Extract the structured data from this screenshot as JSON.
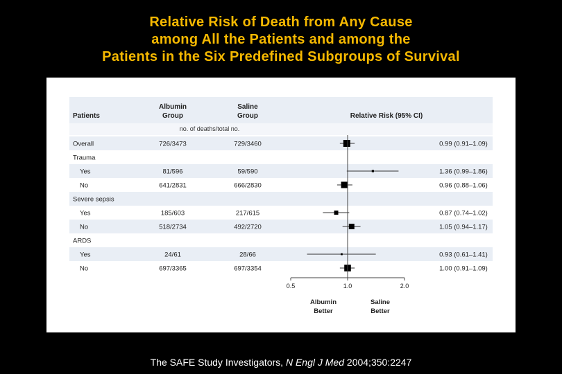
{
  "title_lines": [
    "Relative Risk of Death from Any Cause",
    "among All the Patients and among the",
    "Patients in the Six Predefined Subgroups of Survival"
  ],
  "citation": {
    "authors": "The SAFE Study Investigators, ",
    "journal": "N Engl J Med",
    "details": " 2004;350:2247"
  },
  "colors": {
    "title": "#f5b800",
    "band": "#e9eef5",
    "marker": "#000000"
  },
  "chart_data": {
    "type": "forest",
    "headers": {
      "patients": "Patients",
      "albumin": [
        "Albumin",
        "Group"
      ],
      "saline": [
        "Saline",
        "Group"
      ],
      "risk": "Relative Risk (95% CI)"
    },
    "subheader": "no. of deaths/total no.",
    "xaxis": {
      "scale": "log",
      "ticks": [
        0.5,
        1.0,
        2.0
      ],
      "tick_labels": [
        "0.5",
        "1.0",
        "2.0"
      ],
      "range": [
        0.5,
        2.0
      ]
    },
    "direction_labels": {
      "left": [
        "Albumin",
        "Better"
      ],
      "right": [
        "Saline",
        "Better"
      ]
    },
    "rows": [
      {
        "label": "Overall",
        "indent": false,
        "albumin": "726/3473",
        "saline": "729/3460",
        "rr": 0.99,
        "lo": 0.91,
        "hi": 1.09,
        "ci_text": "0.99 (0.91–1.09)",
        "weight": 1.0
      },
      {
        "label": "Trauma",
        "indent": false,
        "header": true
      },
      {
        "label": "Yes",
        "indent": true,
        "albumin": "81/596",
        "saline": "59/590",
        "rr": 1.36,
        "lo": 0.99,
        "hi": 1.86,
        "ci_text": "1.36 (0.99–1.86)",
        "weight": 0.15
      },
      {
        "label": "No",
        "indent": true,
        "albumin": "641/2831",
        "saline": "666/2830",
        "rr": 0.96,
        "lo": 0.88,
        "hi": 1.06,
        "ci_text": "0.96 (0.88–1.06)",
        "weight": 0.9
      },
      {
        "label": "Severe sepsis",
        "indent": false,
        "header": true
      },
      {
        "label": "Yes",
        "indent": true,
        "albumin": "185/603",
        "saline": "217/615",
        "rr": 0.87,
        "lo": 0.74,
        "hi": 1.02,
        "ci_text": "0.87 (0.74–1.02)",
        "weight": 0.5
      },
      {
        "label": "No",
        "indent": true,
        "albumin": "518/2734",
        "saline": "492/2720",
        "rr": 1.05,
        "lo": 0.94,
        "hi": 1.17,
        "ci_text": "1.05 (0.94–1.17)",
        "weight": 0.75
      },
      {
        "label": "ARDS",
        "indent": false,
        "header": true
      },
      {
        "label": "Yes",
        "indent": true,
        "albumin": "24/61",
        "saline": "28/66",
        "rr": 0.93,
        "lo": 0.61,
        "hi": 1.41,
        "ci_text": "0.93 (0.61–1.41)",
        "weight": 0.1
      },
      {
        "label": "No",
        "indent": true,
        "albumin": "697/3365",
        "saline": "697/3354",
        "rr": 1.0,
        "lo": 0.91,
        "hi": 1.09,
        "ci_text": "1.00 (0.91–1.09)",
        "weight": 0.95
      }
    ]
  }
}
